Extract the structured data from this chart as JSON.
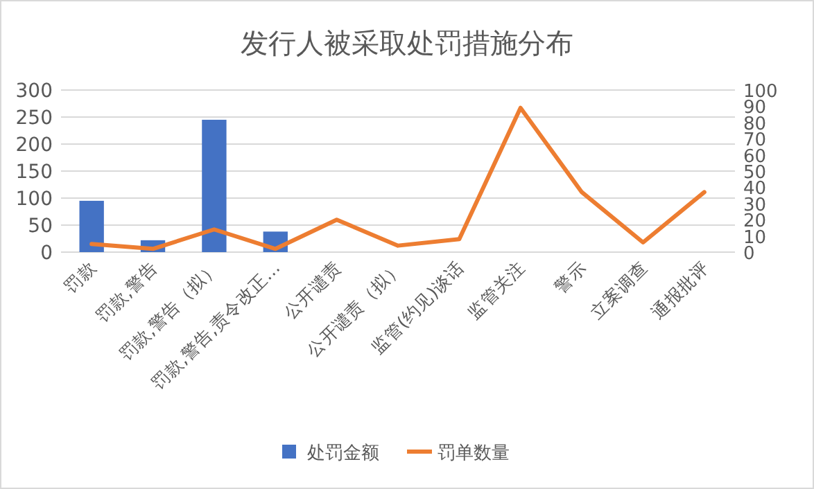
{
  "chart_data": {
    "type": "bar",
    "title": "发行人被采取处罚措施分布",
    "categories": [
      "罚款",
      "罚款,警告",
      "罚款,警告（拟）",
      "罚款,警告,责令改正…",
      "公开谴责",
      "公开谴责（拟）",
      "监管(约见)谈话",
      "监管关注",
      "警示",
      "立案调查",
      "通报批评"
    ],
    "series": [
      {
        "name": "处罚金额",
        "color": "#4472c4",
        "values": [
          95,
          22,
          245,
          38,
          null,
          null,
          null,
          null,
          null,
          null,
          null
        ]
      },
      {
        "name": "罚单数量",
        "type": "line",
        "axis": "y2",
        "color": "#ed7d31",
        "values": [
          5,
          2,
          14,
          2,
          20,
          4,
          8,
          89,
          37,
          6,
          37
        ]
      }
    ],
    "ylim": [
      0,
      300
    ],
    "yticks": [
      0,
      50,
      100,
      150,
      200,
      250,
      300
    ],
    "y2lim": [
      0,
      100
    ],
    "y2ticks": [
      0,
      10,
      20,
      30,
      40,
      50,
      60,
      70,
      80,
      90,
      100
    ],
    "grid": "y",
    "legend": "bottom",
    "marker": "none",
    "line_style": "solid"
  }
}
